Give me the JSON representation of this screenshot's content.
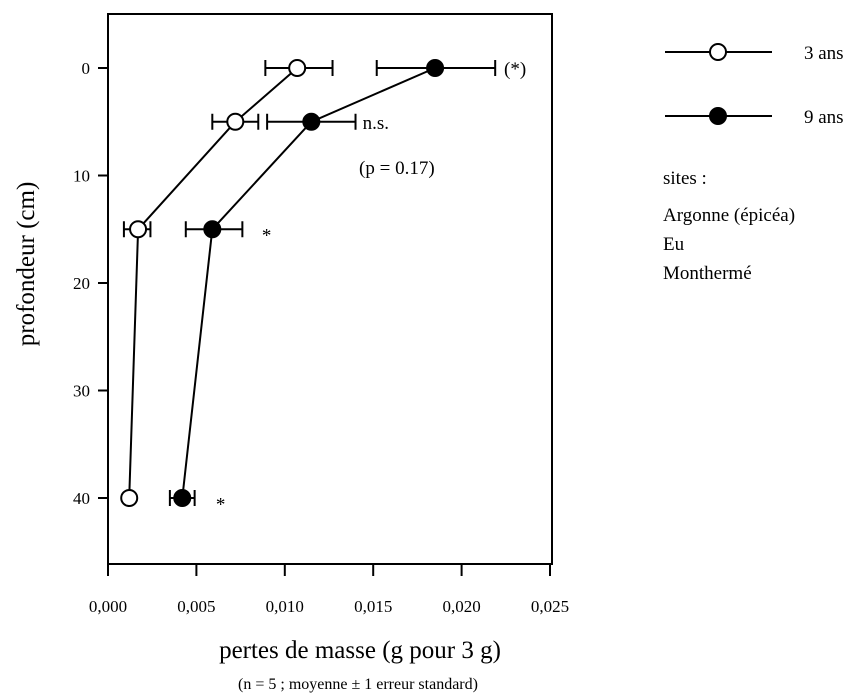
{
  "chart_data": {
    "type": "line",
    "xlabel": "pertes de masse (g pour 3 g)",
    "xlabel_note": "(n = 5 ; moyenne ± 1 erreur standard)",
    "ylabel": "profondeur (cm)",
    "xlim": [
      0,
      0.025
    ],
    "ylim": [
      45,
      -5
    ],
    "y_inverted": true,
    "grid": false,
    "legend_placement": "right",
    "x_ticks": [
      {
        "value": 0.0,
        "label": "0,000"
      },
      {
        "value": 0.005,
        "label": "0,005"
      },
      {
        "value": 0.01,
        "label": "0,010"
      },
      {
        "value": 0.015,
        "label": "0,015"
      },
      {
        "value": 0.02,
        "label": "0,020"
      },
      {
        "value": 0.025,
        "label": "0,025"
      }
    ],
    "y_ticks": [
      {
        "value": 0,
        "label": "0"
      },
      {
        "value": 10,
        "label": "10"
      },
      {
        "value": 20,
        "label": "20"
      },
      {
        "value": 30,
        "label": "30"
      },
      {
        "value": 40,
        "label": "40"
      }
    ],
    "series": [
      {
        "name": "3 ans",
        "marker": "open-circle",
        "points": [
          {
            "depth": 0,
            "loss": 0.0107,
            "se_low": 0.0089,
            "se_high": 0.0127
          },
          {
            "depth": 5,
            "loss": 0.0072,
            "se_low": 0.0059,
            "se_high": 0.0085
          },
          {
            "depth": 15,
            "loss": 0.0017,
            "se_low": 0.0009,
            "se_high": 0.0024
          },
          {
            "depth": 40,
            "loss": 0.0012,
            "se_low": null,
            "se_high": null
          }
        ]
      },
      {
        "name": "9 ans",
        "marker": "filled-circle",
        "points": [
          {
            "depth": 0,
            "loss": 0.0185,
            "se_low": 0.0152,
            "se_high": 0.0219
          },
          {
            "depth": 5,
            "loss": 0.0115,
            "se_low": 0.009,
            "se_high": 0.014
          },
          {
            "depth": 15,
            "loss": 0.0059,
            "se_low": 0.0044,
            "se_high": 0.0076
          },
          {
            "depth": 40,
            "loss": 0.0042,
            "se_low": 0.0035,
            "se_high": 0.0049
          }
        ]
      }
    ],
    "annotations": [
      {
        "text": "(*)",
        "loss": 0.0224,
        "depth": 0
      },
      {
        "text": "n.s.",
        "loss": 0.0144,
        "depth": 5
      },
      {
        "text": "(p = 0.17)",
        "loss": 0.0142,
        "depth": 9.2
      },
      {
        "text": "*",
        "loss": 0.0087,
        "depth": 15.5
      },
      {
        "text": "*",
        "loss": 0.0061,
        "depth": 40.5
      }
    ],
    "sites_label": "sites :",
    "sites": [
      "Argonne (épicéa)",
      "Eu",
      "Monthermé"
    ]
  }
}
